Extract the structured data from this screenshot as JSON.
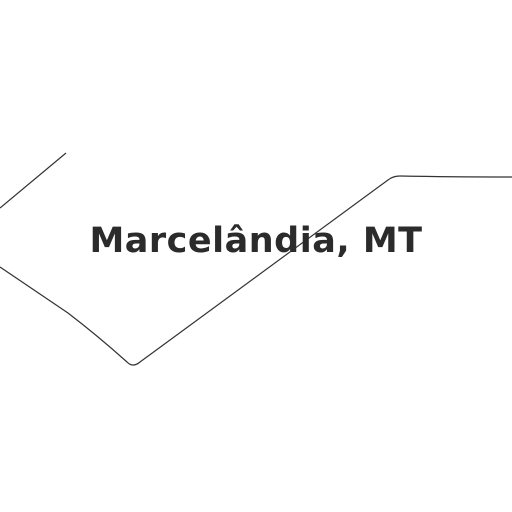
{
  "map": {
    "place_label": "Marcelândia, MT",
    "colors": {
      "background": "#ffffff",
      "boundary": "#333333",
      "label": "#2b2b2b"
    }
  }
}
